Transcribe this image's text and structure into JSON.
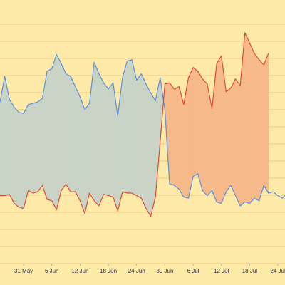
{
  "colors": {
    "background": "#fde9a8",
    "grid": "#f0d080",
    "blue_line": "#5b8fe0",
    "red_line": "#e04a35",
    "blue_fill": "#c9d4c6",
    "red_fill": "#f6b98a"
  },
  "chart_data": {
    "type": "area",
    "grid": true,
    "xlabel": "",
    "ylabel": "",
    "x_tick_labels": [
      {
        "date": "2024-05-31",
        "label": "31 May"
      },
      {
        "date": "2024-06-06",
        "label": "6 Jun"
      },
      {
        "date": "2024-06-12",
        "label": "12 Jun"
      },
      {
        "date": "2024-06-18",
        "label": "18 Jun"
      },
      {
        "date": "2024-06-24",
        "label": "24 Jun"
      },
      {
        "date": "2024-06-30",
        "label": "30 Jun"
      },
      {
        "date": "2024-07-06",
        "label": "6 Jul"
      },
      {
        "date": "2024-07-12",
        "label": "12 Jul"
      },
      {
        "date": "2024-07-18",
        "label": "18 Jul"
      },
      {
        "date": "2024-07-24",
        "label": "24 Jul"
      }
    ],
    "x_range": [
      "2024-05-26",
      "2024-07-26"
    ],
    "y_range": [
      0,
      100
    ],
    "series": [
      {
        "color": "blue",
        "values": [
          [
            "2024-05-26",
            63
          ],
          [
            "2024-05-27",
            73
          ],
          [
            "2024-05-28",
            64
          ],
          [
            "2024-05-29",
            61
          ],
          [
            "2024-05-30",
            59
          ],
          [
            "2024-05-31",
            58.5
          ],
          [
            "2024-06-01",
            62
          ],
          [
            "2024-06-02",
            62.5
          ],
          [
            "2024-06-03",
            63
          ],
          [
            "2024-06-04",
            64.5
          ],
          [
            "2024-06-05",
            75
          ],
          [
            "2024-06-06",
            76
          ],
          [
            "2024-06-07",
            81.5
          ],
          [
            "2024-06-08",
            78
          ],
          [
            "2024-06-09",
            74
          ],
          [
            "2024-06-10",
            73
          ],
          [
            "2024-06-11",
            69
          ],
          [
            "2024-06-12",
            65
          ],
          [
            "2024-06-13",
            60
          ],
          [
            "2024-06-14",
            62.5
          ],
          [
            "2024-06-15",
            78.5
          ],
          [
            "2024-06-16",
            74
          ],
          [
            "2024-06-17",
            70.5
          ],
          [
            "2024-06-18",
            68
          ],
          [
            "2024-06-19",
            70.5
          ],
          [
            "2024-06-20",
            57.5
          ],
          [
            "2024-06-21",
            72.5
          ],
          [
            "2024-06-22",
            79
          ],
          [
            "2024-06-23",
            79.5
          ],
          [
            "2024-06-24",
            71.5
          ],
          [
            "2024-06-25",
            74
          ],
          [
            "2024-06-26",
            70
          ],
          [
            "2024-06-27",
            66.5
          ],
          [
            "2024-06-28",
            63.5
          ],
          [
            "2024-06-29",
            72.5
          ],
          [
            "2024-06-30",
            60
          ],
          [
            "2024-07-01",
            31
          ],
          [
            "2024-07-02",
            30.5
          ],
          [
            "2024-07-03",
            29
          ],
          [
            "2024-07-04",
            26
          ],
          [
            "2024-07-05",
            25.5
          ],
          [
            "2024-07-06",
            34
          ],
          [
            "2024-07-07",
            35
          ],
          [
            "2024-07-08",
            28.5
          ],
          [
            "2024-07-09",
            26.5
          ],
          [
            "2024-07-10",
            28.5
          ],
          [
            "2024-07-11",
            24
          ],
          [
            "2024-07-12",
            23.5
          ],
          [
            "2024-07-13",
            28
          ],
          [
            "2024-07-14",
            30.5
          ],
          [
            "2024-07-15",
            26.5
          ],
          [
            "2024-07-16",
            22.5
          ],
          [
            "2024-07-17",
            24
          ],
          [
            "2024-07-18",
            23.5
          ],
          [
            "2024-07-19",
            25.5
          ],
          [
            "2024-07-20",
            24.5
          ],
          [
            "2024-07-21",
            30.5
          ],
          [
            "2024-07-22",
            27.5
          ],
          [
            "2024-07-23",
            28
          ],
          [
            "2024-07-24",
            26.5
          ],
          [
            "2024-07-25",
            25.5
          ],
          [
            "2024-07-26",
            28
          ]
        ]
      },
      {
        "color": "red",
        "values": [
          [
            "2024-05-26",
            26.5
          ],
          [
            "2024-05-27",
            26.5
          ],
          [
            "2024-05-28",
            27
          ],
          [
            "2024-05-29",
            23.5
          ],
          [
            "2024-05-30",
            22
          ],
          [
            "2024-05-31",
            21.5
          ],
          [
            "2024-06-01",
            28.5
          ],
          [
            "2024-06-02",
            27.5
          ],
          [
            "2024-06-03",
            28
          ],
          [
            "2024-06-04",
            30.5
          ],
          [
            "2024-06-05",
            25
          ],
          [
            "2024-06-06",
            24.5
          ],
          [
            "2024-06-07",
            21
          ],
          [
            "2024-06-08",
            28.5
          ],
          [
            "2024-06-09",
            31
          ],
          [
            "2024-06-10",
            28
          ],
          [
            "2024-06-11",
            28
          ],
          [
            "2024-06-12",
            24.5
          ],
          [
            "2024-06-13",
            19.5
          ],
          [
            "2024-06-14",
            27.5
          ],
          [
            "2024-06-15",
            24.5
          ],
          [
            "2024-06-16",
            22.5
          ],
          [
            "2024-06-17",
            27
          ],
          [
            "2024-06-18",
            26.5
          ],
          [
            "2024-06-19",
            26
          ],
          [
            "2024-06-20",
            20.5
          ],
          [
            "2024-06-21",
            28
          ],
          [
            "2024-06-22",
            27.5
          ],
          [
            "2024-06-23",
            27.5
          ],
          [
            "2024-06-24",
            26.5
          ],
          [
            "2024-06-25",
            25.5
          ],
          [
            "2024-06-26",
            21.5
          ],
          [
            "2024-06-27",
            18.5
          ],
          [
            "2024-06-28",
            26
          ],
          [
            "2024-06-29",
            47.5
          ],
          [
            "2024-06-30",
            70
          ],
          [
            "2024-07-01",
            70.5
          ],
          [
            "2024-07-02",
            68
          ],
          [
            "2024-07-03",
            69
          ],
          [
            "2024-07-04",
            62
          ],
          [
            "2024-07-05",
            72.5
          ],
          [
            "2024-07-06",
            76.5
          ],
          [
            "2024-07-07",
            75
          ],
          [
            "2024-07-08",
            72
          ],
          [
            "2024-07-09",
            70
          ],
          [
            "2024-07-10",
            60.5
          ],
          [
            "2024-07-11",
            78
          ],
          [
            "2024-07-12",
            81
          ],
          [
            "2024-07-13",
            67
          ],
          [
            "2024-07-14",
            68.5
          ],
          [
            "2024-07-15",
            72
          ],
          [
            "2024-07-16",
            69.5
          ],
          [
            "2024-07-17",
            90
          ],
          [
            "2024-07-18",
            86
          ],
          [
            "2024-07-19",
            82
          ],
          [
            "2024-07-20",
            79.5
          ],
          [
            "2024-07-21",
            77.5
          ],
          [
            "2024-07-22",
            82
          ]
        ]
      }
    ]
  }
}
